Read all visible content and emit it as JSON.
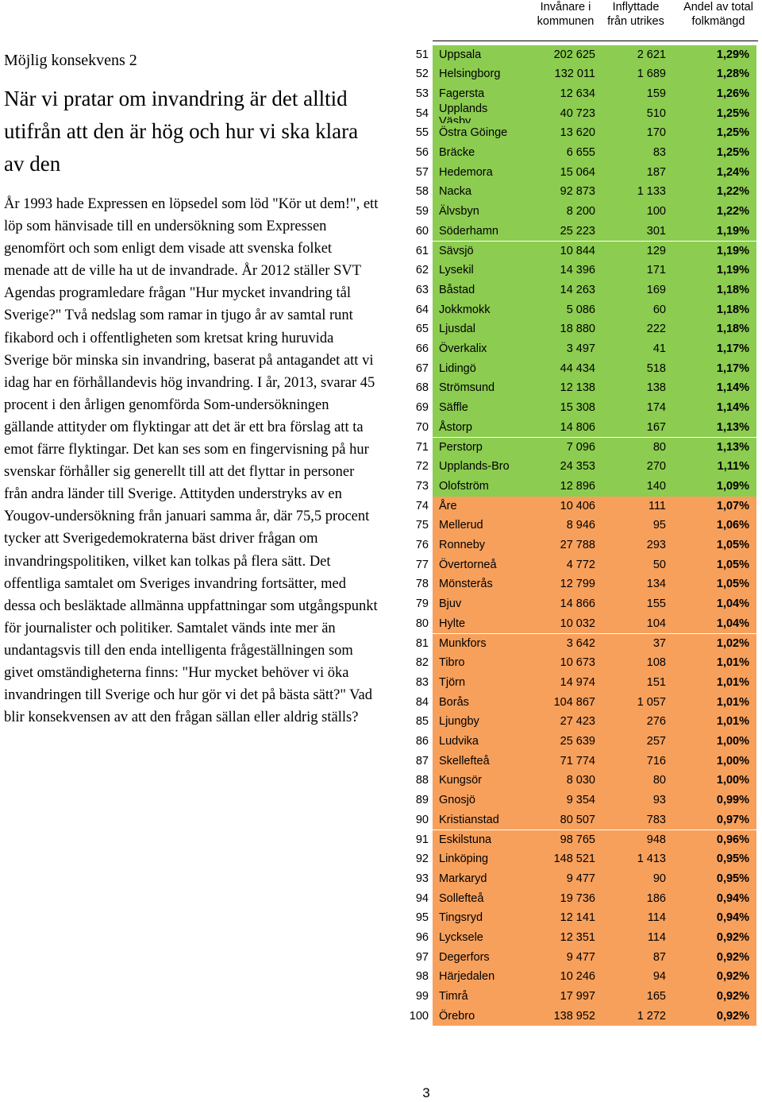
{
  "section_label": "Möjlig konsekvens 2",
  "heading": "När vi pratar om invandring är det alltid utifrån att den är hög och hur vi ska klara av den",
  "body": "År 1993 hade Expressen en löpsedel som löd \"Kör ut dem!\", ett löp som hänvisade till en undersökning som Expressen genomfört och som enligt dem visade att svenska folket menade att de ville ha ut de invandrade. År 2012 ställer SVT Agendas programledare frågan \"Hur mycket invandring tål Sverige?\" Två nedslag som ramar in tjugo år av samtal runt fikabord och i offentligheten som kretsat kring huruvida Sverige bör minska sin invandring, baserat på antagandet att vi idag har en förhållandevis hög invandring. I år, 2013, svarar 45 procent i den årligen genomförda Som-undersökningen gällande attityder om flyktingar att det är ett bra förslag att ta emot färre flyktingar. Det kan ses som en fingervisning på hur svenskar förhåller sig generellt till att det flyttar in personer från andra länder till Sverige. Attityden understryks av en Yougov-undersökning från januari samma år, där 75,5 procent tycker att Sverigedemokraterna bäst driver frågan om invandringspolitiken, vilket kan tolkas på flera sätt. Det offentliga samtalet om Sveriges invandring fortsätter, med dessa och besläktade allmänna uppfattningar som utgångspunkt för journalister och politiker. Samtalet vänds inte mer än undantagsvis till den enda intelligenta frågeställningen som givet omständigheterna finns: \"Hur mycket behöver vi öka invandringen till Sverige och hur gör vi det på bästa sätt?\" Vad blir konsekvensen av att den frågan sällan eller aldrig ställs?",
  "table": {
    "headers": {
      "population": "Invånare i kommunen",
      "immigrated": "Inflyttade från utrikes",
      "share": "Andel av total folkmängd"
    },
    "colors": {
      "green": "#8ccc50",
      "orange": "#f7a05c"
    },
    "rows": [
      {
        "rank": "51",
        "name": "Uppsala",
        "population": "202 625",
        "immigrated": "2 621",
        "share": "1,29%",
        "color": "green"
      },
      {
        "rank": "52",
        "name": "Helsingborg",
        "population": "132 011",
        "immigrated": "1 689",
        "share": "1,28%",
        "color": "green"
      },
      {
        "rank": "53",
        "name": "Fagersta",
        "population": "12 634",
        "immigrated": "159",
        "share": "1,26%",
        "color": "green"
      },
      {
        "rank": "54",
        "name": "Upplands Väsby",
        "population": "40 723",
        "immigrated": "510",
        "share": "1,25%",
        "color": "green"
      },
      {
        "rank": "55",
        "name": "Östra Göinge",
        "population": "13 620",
        "immigrated": "170",
        "share": "1,25%",
        "color": "green"
      },
      {
        "rank": "56",
        "name": "Bräcke",
        "population": "6 655",
        "immigrated": "83",
        "share": "1,25%",
        "color": "green"
      },
      {
        "rank": "57",
        "name": "Hedemora",
        "population": "15 064",
        "immigrated": "187",
        "share": "1,24%",
        "color": "green"
      },
      {
        "rank": "58",
        "name": "Nacka",
        "population": "92 873",
        "immigrated": "1 133",
        "share": "1,22%",
        "color": "green"
      },
      {
        "rank": "59",
        "name": "Älvsbyn",
        "population": "8 200",
        "immigrated": "100",
        "share": "1,22%",
        "color": "green"
      },
      {
        "rank": "60",
        "name": "Söderhamn",
        "population": "25 223",
        "immigrated": "301",
        "share": "1,19%",
        "color": "green"
      },
      {
        "rank": "61",
        "name": "Sävsjö",
        "population": "10 844",
        "immigrated": "129",
        "share": "1,19%",
        "color": "green"
      },
      {
        "rank": "62",
        "name": "Lysekil",
        "population": "14 396",
        "immigrated": "171",
        "share": "1,19%",
        "color": "green"
      },
      {
        "rank": "63",
        "name": "Båstad",
        "population": "14 263",
        "immigrated": "169",
        "share": "1,18%",
        "color": "green"
      },
      {
        "rank": "64",
        "name": "Jokkmokk",
        "population": "5 086",
        "immigrated": "60",
        "share": "1,18%",
        "color": "green"
      },
      {
        "rank": "65",
        "name": "Ljusdal",
        "population": "18 880",
        "immigrated": "222",
        "share": "1,18%",
        "color": "green"
      },
      {
        "rank": "66",
        "name": "Överkalix",
        "population": "3 497",
        "immigrated": "41",
        "share": "1,17%",
        "color": "green"
      },
      {
        "rank": "67",
        "name": "Lidingö",
        "population": "44 434",
        "immigrated": "518",
        "share": "1,17%",
        "color": "green"
      },
      {
        "rank": "68",
        "name": "Strömsund",
        "population": "12 138",
        "immigrated": "138",
        "share": "1,14%",
        "color": "green"
      },
      {
        "rank": "69",
        "name": "Säffle",
        "population": "15 308",
        "immigrated": "174",
        "share": "1,14%",
        "color": "green"
      },
      {
        "rank": "70",
        "name": "Åstorp",
        "population": "14 806",
        "immigrated": "167",
        "share": "1,13%",
        "color": "green"
      },
      {
        "rank": "71",
        "name": "Perstorp",
        "population": "7 096",
        "immigrated": "80",
        "share": "1,13%",
        "color": "green"
      },
      {
        "rank": "72",
        "name": "Upplands-Bro",
        "population": "24 353",
        "immigrated": "270",
        "share": "1,11%",
        "color": "green"
      },
      {
        "rank": "73",
        "name": "Olofström",
        "population": "12 896",
        "immigrated": "140",
        "share": "1,09%",
        "color": "green"
      },
      {
        "rank": "74",
        "name": "Åre",
        "population": "10 406",
        "immigrated": "111",
        "share": "1,07%",
        "color": "orange"
      },
      {
        "rank": "75",
        "name": "Mellerud",
        "population": "8 946",
        "immigrated": "95",
        "share": "1,06%",
        "color": "orange"
      },
      {
        "rank": "76",
        "name": "Ronneby",
        "population": "27 788",
        "immigrated": "293",
        "share": "1,05%",
        "color": "orange"
      },
      {
        "rank": "77",
        "name": "Övertorneå",
        "population": "4 772",
        "immigrated": "50",
        "share": "1,05%",
        "color": "orange"
      },
      {
        "rank": "78",
        "name": "Mönsterås",
        "population": "12 799",
        "immigrated": "134",
        "share": "1,05%",
        "color": "orange"
      },
      {
        "rank": "79",
        "name": "Bjuv",
        "population": "14 866",
        "immigrated": "155",
        "share": "1,04%",
        "color": "orange"
      },
      {
        "rank": "80",
        "name": "Hylte",
        "population": "10 032",
        "immigrated": "104",
        "share": "1,04%",
        "color": "orange"
      },
      {
        "rank": "81",
        "name": "Munkfors",
        "population": "3 642",
        "immigrated": "37",
        "share": "1,02%",
        "color": "orange"
      },
      {
        "rank": "82",
        "name": "Tibro",
        "population": "10 673",
        "immigrated": "108",
        "share": "1,01%",
        "color": "orange"
      },
      {
        "rank": "83",
        "name": "Tjörn",
        "population": "14 974",
        "immigrated": "151",
        "share": "1,01%",
        "color": "orange"
      },
      {
        "rank": "84",
        "name": "Borås",
        "population": "104 867",
        "immigrated": "1 057",
        "share": "1,01%",
        "color": "orange"
      },
      {
        "rank": "85",
        "name": "Ljungby",
        "population": "27 423",
        "immigrated": "276",
        "share": "1,01%",
        "color": "orange"
      },
      {
        "rank": "86",
        "name": "Ludvika",
        "population": "25 639",
        "immigrated": "257",
        "share": "1,00%",
        "color": "orange"
      },
      {
        "rank": "87",
        "name": "Skellefteå",
        "population": "71 774",
        "immigrated": "716",
        "share": "1,00%",
        "color": "orange"
      },
      {
        "rank": "88",
        "name": "Kungsör",
        "population": "8 030",
        "immigrated": "80",
        "share": "1,00%",
        "color": "orange"
      },
      {
        "rank": "89",
        "name": "Gnosjö",
        "population": "9 354",
        "immigrated": "93",
        "share": "0,99%",
        "color": "orange"
      },
      {
        "rank": "90",
        "name": "Kristianstad",
        "population": "80 507",
        "immigrated": "783",
        "share": "0,97%",
        "color": "orange"
      },
      {
        "rank": "91",
        "name": "Eskilstuna",
        "population": "98 765",
        "immigrated": "948",
        "share": "0,96%",
        "color": "orange"
      },
      {
        "rank": "92",
        "name": "Linköping",
        "population": "148 521",
        "immigrated": "1 413",
        "share": "0,95%",
        "color": "orange"
      },
      {
        "rank": "93",
        "name": "Markaryd",
        "population": "9 477",
        "immigrated": "90",
        "share": "0,95%",
        "color": "orange"
      },
      {
        "rank": "94",
        "name": "Sollefteå",
        "population": "19 736",
        "immigrated": "186",
        "share": "0,94%",
        "color": "orange"
      },
      {
        "rank": "95",
        "name": "Tingsryd",
        "population": "12 141",
        "immigrated": "114",
        "share": "0,94%",
        "color": "orange"
      },
      {
        "rank": "96",
        "name": "Lycksele",
        "population": "12 351",
        "immigrated": "114",
        "share": "0,92%",
        "color": "orange"
      },
      {
        "rank": "97",
        "name": "Degerfors",
        "population": "9 477",
        "immigrated": "87",
        "share": "0,92%",
        "color": "orange"
      },
      {
        "rank": "98",
        "name": "Härjedalen",
        "population": "10 246",
        "immigrated": "94",
        "share": "0,92%",
        "color": "orange"
      },
      {
        "rank": "99",
        "name": "Timrå",
        "population": "17 997",
        "immigrated": "165",
        "share": "0,92%",
        "color": "orange"
      },
      {
        "rank": "100",
        "name": "Örebro",
        "population": "138 952",
        "immigrated": "1 272",
        "share": "0,92%",
        "color": "orange"
      }
    ]
  },
  "page_number": "3"
}
